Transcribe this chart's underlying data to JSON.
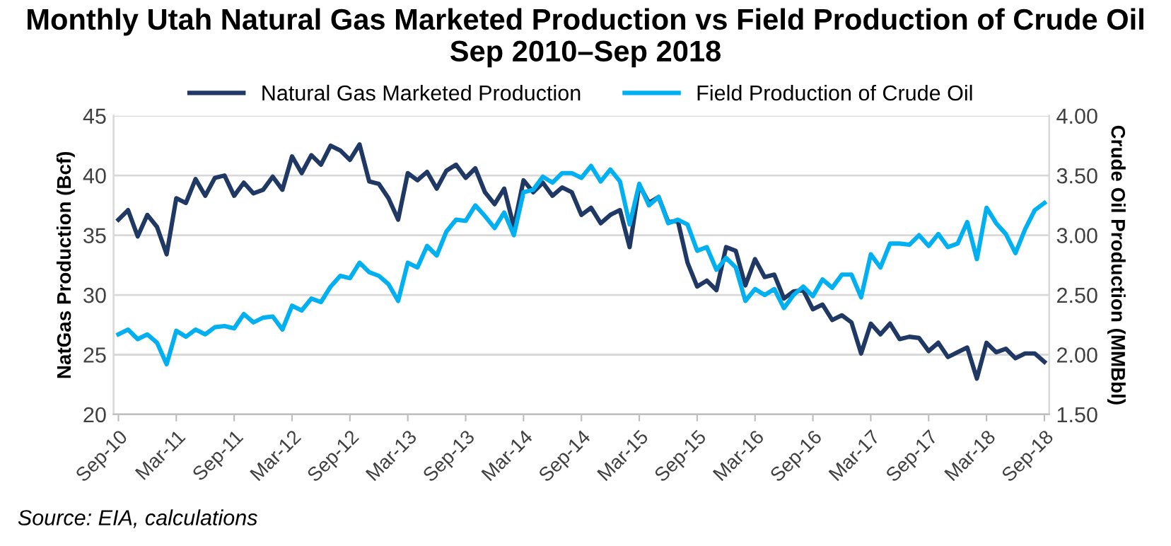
{
  "chart_data": {
    "type": "line",
    "title": "Monthly Utah Natural Gas Marketed Production vs Field Production of Crude Oil\nSep 2010–Sep 2018",
    "ylabel": "NatGas Production (Bcf)",
    "y2label": "Crude Oil Production (MMBbl)",
    "categories": [
      "Sep-10",
      null,
      null,
      null,
      null,
      null,
      "Mar-11",
      null,
      null,
      null,
      null,
      null,
      "Sep-11",
      null,
      null,
      null,
      null,
      null,
      "Mar-12",
      null,
      null,
      null,
      null,
      null,
      "Sep-12",
      null,
      null,
      null,
      null,
      null,
      "Mar-13",
      null,
      null,
      null,
      null,
      null,
      "Sep-13",
      null,
      null,
      null,
      null,
      null,
      "Mar-14",
      null,
      null,
      null,
      null,
      null,
      "Sep-14",
      null,
      null,
      null,
      null,
      null,
      "Mar-15",
      null,
      null,
      null,
      null,
      null,
      "Sep-15",
      null,
      null,
      null,
      null,
      null,
      "Mar-16",
      null,
      null,
      null,
      null,
      null,
      "Sep-16",
      null,
      null,
      null,
      null,
      null,
      "Mar-17",
      null,
      null,
      null,
      null,
      null,
      "Sep-17",
      null,
      null,
      null,
      null,
      null,
      "Mar-18",
      null,
      null,
      null,
      null,
      null,
      "Sep-18"
    ],
    "series": [
      {
        "name": "Natural Gas Marketed Production",
        "color": "#1f3864",
        "values": [
          36.3,
          37.1,
          34.9,
          36.7,
          35.7,
          33.4,
          38.1,
          37.7,
          39.7,
          38.3,
          39.8,
          40.0,
          38.3,
          39.4,
          38.5,
          38.8,
          39.9,
          38.8,
          41.6,
          40.2,
          41.7,
          40.9,
          42.5,
          42.1,
          41.3,
          42.6,
          39.5,
          39.3,
          38.1,
          36.3,
          40.2,
          39.6,
          40.3,
          38.9,
          40.4,
          40.9,
          39.8,
          40.6,
          38.6,
          37.6,
          38.9,
          35.7,
          39.6,
          38.6,
          39.4,
          38.3,
          39.0,
          38.6,
          36.7,
          37.3,
          36.0,
          36.7,
          37.1,
          34.0,
          39.2,
          37.7,
          38.2,
          36.1,
          36.2,
          32.7,
          30.7,
          31.2,
          30.4,
          34.0,
          33.7,
          30.8,
          33.0,
          31.5,
          31.7,
          29.7,
          30.3,
          30.4,
          28.8,
          29.2,
          27.9,
          28.3,
          27.7,
          25.1,
          27.6,
          26.7,
          27.6,
          26.3,
          26.5,
          26.4,
          25.3,
          26.0,
          24.8,
          25.2,
          25.6,
          23.0,
          26.0,
          25.2,
          25.5,
          24.7,
          25.1,
          25.1,
          24.4
        ]
      },
      {
        "name": "Field Production of Crude Oil",
        "color": "#00b0f0",
        "axis": "y2",
        "values": [
          2.17,
          2.21,
          2.13,
          2.17,
          2.1,
          1.92,
          2.2,
          2.15,
          2.21,
          2.17,
          2.23,
          2.24,
          2.22,
          2.34,
          2.27,
          2.31,
          2.32,
          2.21,
          2.41,
          2.37,
          2.47,
          2.44,
          2.57,
          2.66,
          2.64,
          2.77,
          2.69,
          2.66,
          2.59,
          2.45,
          2.77,
          2.73,
          2.91,
          2.83,
          3.03,
          3.13,
          3.12,
          3.25,
          3.16,
          3.06,
          3.19,
          3.0,
          3.36,
          3.38,
          3.49,
          3.44,
          3.52,
          3.52,
          3.48,
          3.58,
          3.45,
          3.55,
          3.45,
          3.09,
          3.43,
          3.25,
          3.32,
          3.1,
          3.13,
          3.09,
          2.87,
          2.9,
          2.71,
          2.81,
          2.73,
          2.45,
          2.55,
          2.5,
          2.55,
          2.39,
          2.5,
          2.57,
          2.49,
          2.63,
          2.56,
          2.67,
          2.67,
          2.48,
          2.84,
          2.73,
          2.93,
          2.93,
          2.92,
          3.0,
          2.91,
          3.01,
          2.9,
          2.93,
          3.11,
          2.8,
          3.23,
          3.1,
          3.01,
          2.85,
          3.05,
          3.21,
          3.27
        ]
      }
    ],
    "ylim": [
      20,
      45
    ],
    "yticks": [
      20,
      25,
      30,
      35,
      40,
      45
    ],
    "y2lim": [
      1.5,
      4.0
    ],
    "y2ticks": [
      {
        "value": 1.5,
        "label": "1.50"
      },
      {
        "value": 2.0,
        "label": "2.00"
      },
      {
        "value": 2.5,
        "label": "2.50"
      },
      {
        "value": 3.0,
        "label": "3.00"
      },
      {
        "value": 3.5,
        "label": "3.50"
      },
      {
        "value": 4.0,
        "label": "4.00"
      }
    ],
    "grid": "y",
    "legend": "top",
    "marker": "none",
    "line_style": "solid",
    "annotations": [
      "Source: EIA, calculations"
    ]
  }
}
